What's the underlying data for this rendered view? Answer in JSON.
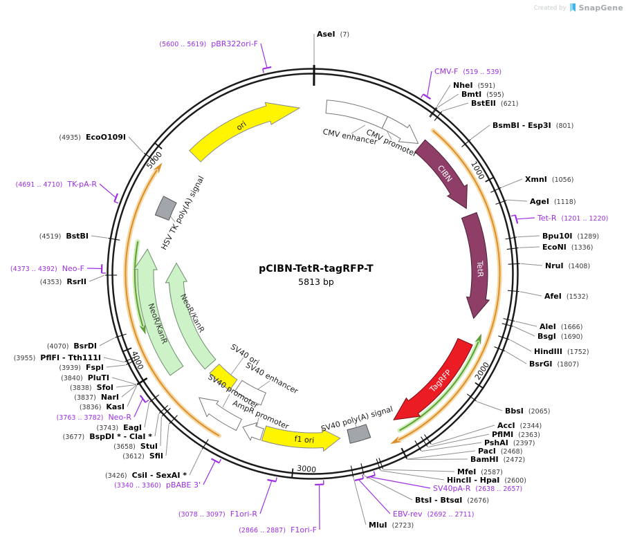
{
  "header": {
    "credit_prefix": "Created by",
    "credit_brand": "SnapGene"
  },
  "plasmid": {
    "name": "pCIBN-TetR-tagRFP-T",
    "size": "5813 bp",
    "length_bp": 5813
  },
  "scale_ticks": [
    "1000",
    "2000",
    "3000",
    "4000",
    "5000"
  ],
  "features": [
    {
      "label": "ori",
      "type": "origin-of-replication",
      "direction": "clockwise",
      "color": "#FFF500"
    },
    {
      "label": "CMV enhancer",
      "type": "enhancer",
      "direction": "clockwise",
      "color": "#FFFFFF"
    },
    {
      "label": "CMV promoter",
      "type": "promoter",
      "direction": "clockwise",
      "color": "#FFFFFF"
    },
    {
      "label": "CIBN",
      "type": "CDS",
      "direction": "clockwise",
      "color": "#8F3E68"
    },
    {
      "label": "TetR",
      "type": "CDS",
      "direction": "clockwise",
      "color": "#8F3E68"
    },
    {
      "label": "TagRFP",
      "type": "CDS",
      "direction": "clockwise",
      "color": "#EB1C24"
    },
    {
      "label": "SV40 poly(A) signal",
      "type": "polyA-signal",
      "color": "#A2A6AA"
    },
    {
      "label": "f1 ori",
      "type": "origin-of-replication",
      "direction": "counterclockwise",
      "color": "#FFF500"
    },
    {
      "label": "AmpR promoter",
      "type": "promoter",
      "direction": "clockwise",
      "color": "#FFFFFF"
    },
    {
      "label": "SV40 promoter",
      "type": "promoter",
      "direction": "clockwise",
      "color": "#FFFFFF"
    },
    {
      "label": "SV40 enhancer",
      "type": "enhancer",
      "color": "#FFFFFF"
    },
    {
      "label": "SV40 ori",
      "type": "origin-of-replication",
      "color": "#FFF500"
    },
    {
      "label": "NeoR/KanR",
      "type": "CDS",
      "direction": "clockwise",
      "color": "#CDF2C8"
    },
    {
      "label": "NeoR/KanR",
      "type": "CDS",
      "direction": "clockwise",
      "color": "#CDF2C8"
    },
    {
      "label": "HSV TK poly(A) signal",
      "type": "polyA-signal",
      "color": "#A2A6AA"
    }
  ],
  "enzymes": [
    {
      "name": "AseI",
      "pos": "(7)",
      "side": "right"
    },
    {
      "name": "NheI",
      "pos": "(591)",
      "side": "right"
    },
    {
      "name": "BmtI",
      "pos": "(595)",
      "side": "right"
    },
    {
      "name": "BstEII",
      "pos": "(621)",
      "side": "right"
    },
    {
      "name": "BsmBI - Esp3I",
      "pos": "(801)",
      "side": "right"
    },
    {
      "name": "XmnI",
      "pos": "(1056)",
      "side": "right"
    },
    {
      "name": "AgeI",
      "pos": "(1118)",
      "side": "right"
    },
    {
      "name": "Bpu10I",
      "pos": "(1289)",
      "side": "right"
    },
    {
      "name": "EcoNI",
      "pos": "(1336)",
      "side": "right"
    },
    {
      "name": "NruI",
      "pos": "(1408)",
      "side": "right"
    },
    {
      "name": "AfeI",
      "pos": "(1532)",
      "side": "right"
    },
    {
      "name": "AleI",
      "pos": "(1666)",
      "side": "right"
    },
    {
      "name": "BsgI",
      "pos": "(1690)",
      "side": "right"
    },
    {
      "name": "HindIII",
      "pos": "(1752)",
      "side": "right"
    },
    {
      "name": "BsrGI",
      "pos": "(1807)",
      "side": "right"
    },
    {
      "name": "BbsI",
      "pos": "(2065)",
      "side": "right"
    },
    {
      "name": "AccI",
      "pos": "(2344)",
      "side": "right"
    },
    {
      "name": "PflMI",
      "pos": "(2363)",
      "side": "right"
    },
    {
      "name": "PshAI",
      "pos": "(2397)",
      "side": "right"
    },
    {
      "name": "PacI",
      "pos": "(2468)",
      "side": "right"
    },
    {
      "name": "BamHI",
      "pos": "(2472)",
      "side": "right"
    },
    {
      "name": "MfeI",
      "pos": "(2587)",
      "side": "right"
    },
    {
      "name": "HincII - HpaI",
      "pos": "(2600)",
      "side": "right"
    },
    {
      "name": "BtsI - BtsαI",
      "pos": "(2676)",
      "side": "right"
    },
    {
      "name": "MluI",
      "pos": "(2723)",
      "side": "right"
    },
    {
      "name": "CsiI - SexAI *",
      "pos": "(3426)",
      "side": "left"
    },
    {
      "name": "SfiI",
      "pos": "(3612)",
      "side": "left"
    },
    {
      "name": "StuI",
      "pos": "(3658)",
      "side": "left"
    },
    {
      "name": "BspDI * - ClaI *",
      "pos": "(3677)",
      "side": "left"
    },
    {
      "name": "EagI",
      "pos": "(3743)",
      "side": "left"
    },
    {
      "name": "KasI",
      "pos": "(3836)",
      "side": "left"
    },
    {
      "name": "NarI",
      "pos": "(3837)",
      "side": "left"
    },
    {
      "name": "SfoI",
      "pos": "(3838)",
      "side": "left"
    },
    {
      "name": "PluTI",
      "pos": "(3840)",
      "side": "left"
    },
    {
      "name": "FspI",
      "pos": "(3939)",
      "side": "left"
    },
    {
      "name": "PflFI - Tth111I",
      "pos": "(3955)",
      "side": "left"
    },
    {
      "name": "BsrDI",
      "pos": "(4070)",
      "side": "left"
    },
    {
      "name": "RsrII",
      "pos": "(4353)",
      "side": "left"
    },
    {
      "name": "BstBI",
      "pos": "(4519)",
      "side": "left"
    },
    {
      "name": "EcoO109I",
      "pos": "(4935)",
      "side": "left"
    }
  ],
  "primers": [
    {
      "name": "pBR322ori-F",
      "range": "(5600 .. 5619)",
      "side": "left"
    },
    {
      "name": "CMV-F",
      "range": "(519 .. 539)",
      "side": "right"
    },
    {
      "name": "Tet-R",
      "range": "(1201 .. 1220)",
      "side": "right"
    },
    {
      "name": "SV40pA-R",
      "range": "(2638 .. 2657)",
      "side": "right"
    },
    {
      "name": "EBV-rev",
      "range": "(2692 .. 2711)",
      "side": "right"
    },
    {
      "name": "F1ori-F",
      "range": "(2866 .. 2887)",
      "side": "left"
    },
    {
      "name": "F1ori-R",
      "range": "(3078 .. 3097)",
      "side": "left"
    },
    {
      "name": "pBABE 3'",
      "range": "(3340 .. 3360)",
      "side": "left"
    },
    {
      "name": "Neo-R",
      "range": "(3763 .. 3782)",
      "side": "left"
    },
    {
      "name": "Neo-F",
      "range": "(4373 .. 4392)",
      "side": "left"
    },
    {
      "name": "TK-pA-R",
      "range": "(4691 .. 4710)",
      "side": "left"
    }
  ],
  "colors": {
    "backbone": "#1C1C1C",
    "primer_label": "#9C2FE3",
    "leader_line": "#8F8F8F",
    "orf_forward_arc": "#DC8F2A",
    "orf_reverse_arc": "#5F9E3C"
  }
}
